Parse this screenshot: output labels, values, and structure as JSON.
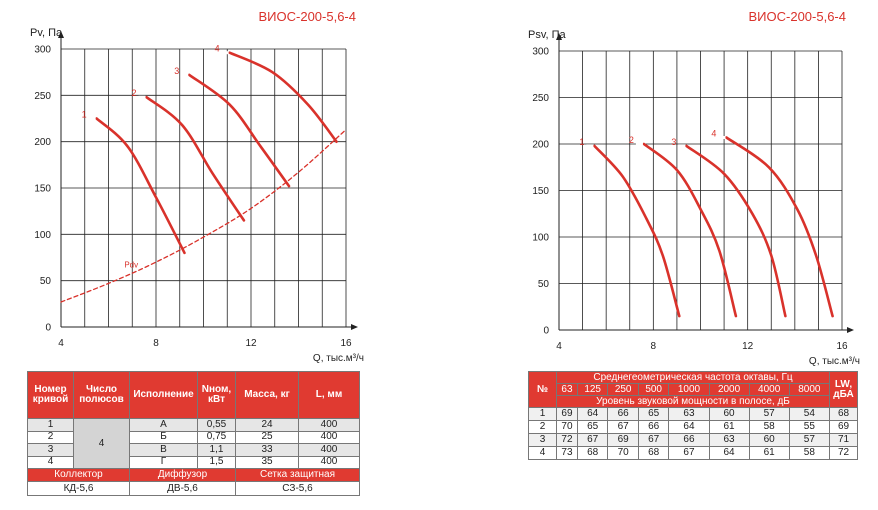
{
  "chart_data": [
    {
      "type": "line",
      "title": "ВИОС-200-5,6-4",
      "ylabel": "Pv, Па",
      "xlabel": "Q, тыс.м³/ч",
      "xlim": [
        4,
        16
      ],
      "ylim": [
        0,
        300
      ],
      "xticks": [
        4,
        8,
        12,
        16
      ],
      "yticks": [
        0,
        50,
        100,
        150,
        200,
        250,
        300
      ],
      "grid": true,
      "series": [
        {
          "name": "1",
          "x": [
            5.5,
            6.8,
            8.0,
            9.2
          ],
          "y": [
            225,
            195,
            140,
            80
          ],
          "color": "#d9322b"
        },
        {
          "name": "2",
          "x": [
            7.6,
            9.1,
            10.4,
            11.7
          ],
          "y": [
            248,
            218,
            165,
            115
          ],
          "color": "#d9322b"
        },
        {
          "name": "3",
          "x": [
            9.4,
            11.1,
            12.4,
            13.6
          ],
          "y": [
            272,
            240,
            195,
            152
          ],
          "color": "#d9322b"
        },
        {
          "name": "4",
          "x": [
            11.1,
            12.9,
            14.4,
            15.6
          ],
          "y": [
            296,
            275,
            240,
            200
          ],
          "color": "#d9322b"
        },
        {
          "name": "Pdv",
          "style": "dashed",
          "x": [
            4,
            6,
            8,
            10,
            12,
            14,
            16
          ],
          "y": [
            27,
            47,
            70,
            97,
            128,
            167,
            213
          ],
          "color": "#d9322b"
        }
      ]
    },
    {
      "type": "line",
      "title": "ВИОС-200-5,6-4",
      "ylabel": "Psv, Па",
      "xlabel": "Q, тыс.м³/ч",
      "xlim": [
        4,
        16
      ],
      "ylim": [
        0,
        300
      ],
      "xticks": [
        4,
        8,
        12,
        16
      ],
      "yticks": [
        0,
        50,
        100,
        150,
        200,
        250,
        300
      ],
      "grid": true,
      "series": [
        {
          "name": "1",
          "x": [
            5.5,
            6.7,
            7.7,
            8.4,
            9.1
          ],
          "y": [
            198,
            165,
            120,
            80,
            15
          ],
          "color": "#d9322b"
        },
        {
          "name": "2",
          "x": [
            7.6,
            9.0,
            10.0,
            10.8,
            11.5
          ],
          "y": [
            200,
            172,
            130,
            85,
            15
          ],
          "color": "#d9322b"
        },
        {
          "name": "3",
          "x": [
            9.4,
            11.0,
            12.2,
            13.0,
            13.6
          ],
          "y": [
            198,
            168,
            125,
            80,
            15
          ],
          "color": "#d9322b"
        },
        {
          "name": "4",
          "x": [
            11.1,
            12.9,
            14.1,
            14.9,
            15.6
          ],
          "y": [
            207,
            175,
            130,
            80,
            15
          ],
          "color": "#d9322b"
        }
      ]
    }
  ],
  "left_table": {
    "headers": [
      "Номер кривой",
      "Число полюсов",
      "Исполнение",
      "Nном, кВт",
      "Масса, кг",
      "L, мм"
    ],
    "poles": "4",
    "rows": [
      {
        "n": "1",
        "isp": "А",
        "power": "0,55",
        "mass": "24",
        "l": "400"
      },
      {
        "n": "2",
        "isp": "Б",
        "power": "0,75",
        "mass": "25",
        "l": "400"
      },
      {
        "n": "3",
        "isp": "В",
        "power": "1,1",
        "mass": "33",
        "l": "400"
      },
      {
        "n": "4",
        "isp": "Г",
        "power": "1,5",
        "mass": "35",
        "l": "400"
      }
    ],
    "accessories": [
      {
        "label": "Коллектор",
        "value": "КД-5,6"
      },
      {
        "label": "Диффузор",
        "value": "ДВ-5,6"
      },
      {
        "label": "Сетка защитная",
        "value": "СЗ-5,6"
      }
    ]
  },
  "right_table": {
    "num_header": "№",
    "freq_title": "Среднегеометрическая частота октавы, Гц",
    "freqs": [
      "63",
      "125",
      "250",
      "500",
      "1000",
      "2000",
      "4000",
      "8000"
    ],
    "power_title": "Уровень звуковой мощности в полосе, дБ",
    "lw_header": "LW, дБА",
    "rows": [
      {
        "n": "1",
        "v": [
          "69",
          "64",
          "66",
          "65",
          "63",
          "60",
          "57",
          "54"
        ],
        "lw": "68"
      },
      {
        "n": "2",
        "v": [
          "70",
          "65",
          "67",
          "66",
          "64",
          "61",
          "58",
          "55"
        ],
        "lw": "69"
      },
      {
        "n": "3",
        "v": [
          "72",
          "67",
          "69",
          "67",
          "66",
          "63",
          "60",
          "57"
        ],
        "lw": "71"
      },
      {
        "n": "4",
        "v": [
          "73",
          "68",
          "70",
          "68",
          "67",
          "64",
          "61",
          "58"
        ],
        "lw": "72"
      }
    ]
  }
}
